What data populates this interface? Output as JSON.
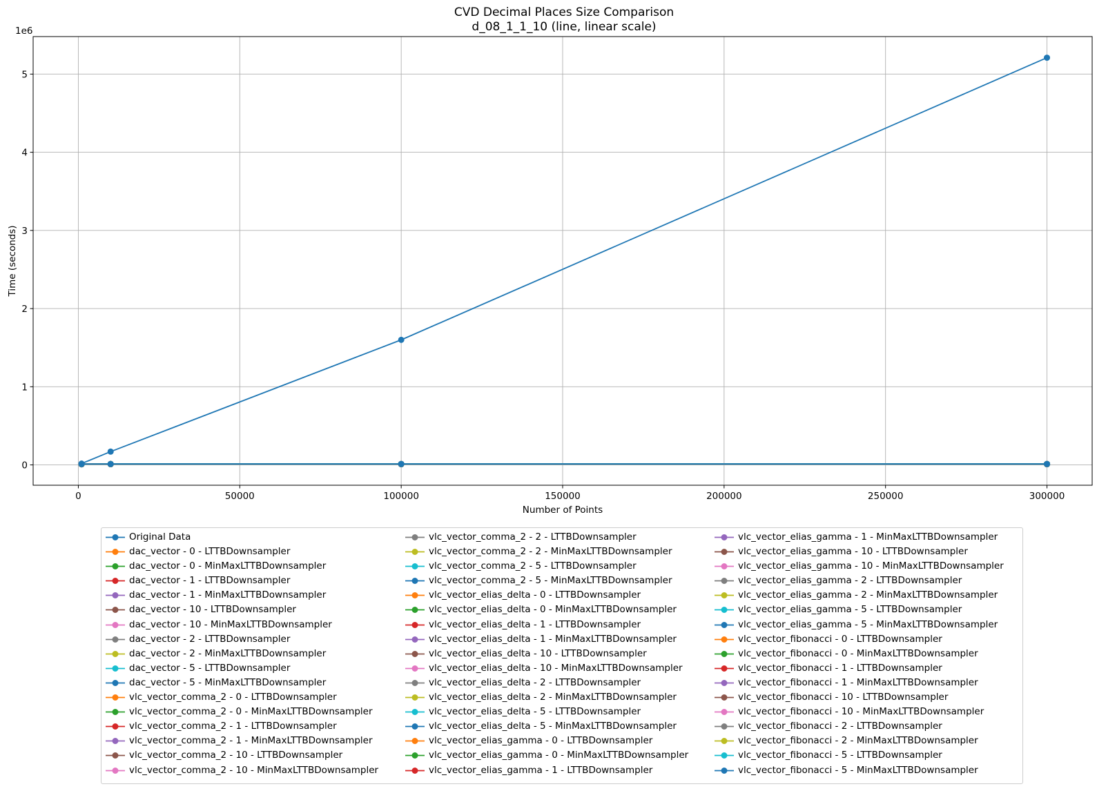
{
  "chart_data": {
    "type": "line",
    "title": "CVD Decimal Places Size Comparison",
    "subtitle": "d_08_1_1_10 (line, linear scale)",
    "xlabel": "Number of Points",
    "ylabel": "Time (seconds)",
    "y_offset_label": "1e6",
    "y_scale_factor": 1000000,
    "xlim": [
      -14000,
      314000
    ],
    "ylim": [
      -260000,
      5480000
    ],
    "x_ticks": [
      0,
      50000,
      100000,
      150000,
      200000,
      250000,
      300000
    ],
    "y_ticks": [
      0,
      1,
      2,
      3,
      4,
      5
    ],
    "grid": true,
    "legend_position": "below",
    "x": [
      1000,
      10000,
      100000,
      300000
    ],
    "palette": [
      "#1f77b4",
      "#ff7f0e",
      "#2ca02c",
      "#d62728",
      "#9467bd",
      "#8c564b",
      "#e377c2",
      "#7f7f7f",
      "#bcbd22",
      "#17becf"
    ],
    "series": [
      {
        "name": "Original Data",
        "values": [
          17000,
          170000,
          1600000,
          5210000
        ]
      },
      {
        "name": "dac_vector - 0 - LTTBDownsampler",
        "values": [
          8000,
          9000,
          9000,
          9000
        ]
      },
      {
        "name": "dac_vector - 0 - MinMaxLTTBDownsampler",
        "values": [
          8000,
          9000,
          9000,
          9000
        ]
      },
      {
        "name": "dac_vector - 1 - LTTBDownsampler",
        "values": [
          8000,
          9000,
          9000,
          9000
        ]
      },
      {
        "name": "dac_vector - 1 - MinMaxLTTBDownsampler",
        "values": [
          8000,
          9000,
          9000,
          9000
        ]
      },
      {
        "name": "dac_vector - 10 - LTTBDownsampler",
        "values": [
          8000,
          9000,
          9000,
          9000
        ]
      },
      {
        "name": "dac_vector - 10 - MinMaxLTTBDownsampler",
        "values": [
          8000,
          9000,
          9000,
          9000
        ]
      },
      {
        "name": "dac_vector - 2 - LTTBDownsampler",
        "values": [
          8000,
          9000,
          9000,
          9000
        ]
      },
      {
        "name": "dac_vector - 2 - MinMaxLTTBDownsampler",
        "values": [
          8000,
          9000,
          9000,
          9000
        ]
      },
      {
        "name": "dac_vector - 5 - LTTBDownsampler",
        "values": [
          8000,
          9000,
          9000,
          9000
        ]
      },
      {
        "name": "dac_vector - 5 - MinMaxLTTBDownsampler",
        "values": [
          8000,
          9000,
          9000,
          9000
        ]
      },
      {
        "name": "vlc_vector_comma_2 - 0 - LTTBDownsampler",
        "values": [
          9000,
          10000,
          10000,
          10000
        ]
      },
      {
        "name": "vlc_vector_comma_2 - 0 - MinMaxLTTBDownsampler",
        "values": [
          9000,
          10000,
          10000,
          10000
        ]
      },
      {
        "name": "vlc_vector_comma_2 - 1 - LTTBDownsampler",
        "values": [
          9000,
          10000,
          10000,
          10000
        ]
      },
      {
        "name": "vlc_vector_comma_2 - 1 - MinMaxLTTBDownsampler",
        "values": [
          9000,
          10000,
          10000,
          10000
        ]
      },
      {
        "name": "vlc_vector_comma_2 - 10 - LTTBDownsampler",
        "values": [
          9000,
          10000,
          10000,
          10000
        ]
      },
      {
        "name": "vlc_vector_comma_2 - 10 - MinMaxLTTBDownsampler",
        "values": [
          9000,
          10000,
          10000,
          10000
        ]
      },
      {
        "name": "vlc_vector_comma_2 - 2 - LTTBDownsampler",
        "values": [
          9000,
          10000,
          10000,
          10000
        ]
      },
      {
        "name": "vlc_vector_comma_2 - 2 - MinMaxLTTBDownsampler",
        "values": [
          9000,
          10000,
          10000,
          10000
        ]
      },
      {
        "name": "vlc_vector_comma_2 - 5 - LTTBDownsampler",
        "values": [
          9000,
          10000,
          10000,
          10000
        ]
      },
      {
        "name": "vlc_vector_comma_2 - 5 - MinMaxLTTBDownsampler",
        "values": [
          9000,
          10000,
          10000,
          10000
        ]
      },
      {
        "name": "vlc_vector_elias_delta - 0 - LTTBDownsampler",
        "values": [
          10000,
          11000,
          11000,
          11000
        ]
      },
      {
        "name": "vlc_vector_elias_delta - 0 - MinMaxLTTBDownsampler",
        "values": [
          10000,
          11000,
          11000,
          11000
        ]
      },
      {
        "name": "vlc_vector_elias_delta - 1 - LTTBDownsampler",
        "values": [
          10000,
          11000,
          11000,
          11000
        ]
      },
      {
        "name": "vlc_vector_elias_delta - 1 - MinMaxLTTBDownsampler",
        "values": [
          10000,
          11000,
          11000,
          11000
        ]
      },
      {
        "name": "vlc_vector_elias_delta - 10 - LTTBDownsampler",
        "values": [
          10000,
          11000,
          11000,
          11000
        ]
      },
      {
        "name": "vlc_vector_elias_delta - 10 - MinMaxLTTBDownsampler",
        "values": [
          10000,
          11000,
          11000,
          11000
        ]
      },
      {
        "name": "vlc_vector_elias_delta - 2 - LTTBDownsampler",
        "values": [
          10000,
          11000,
          11000,
          11000
        ]
      },
      {
        "name": "vlc_vector_elias_delta - 2 - MinMaxLTTBDownsampler",
        "values": [
          10000,
          11000,
          11000,
          11000
        ]
      },
      {
        "name": "vlc_vector_elias_delta - 5 - LTTBDownsampler",
        "values": [
          10000,
          11000,
          11000,
          11000
        ]
      },
      {
        "name": "vlc_vector_elias_delta - 5 - MinMaxLTTBDownsampler",
        "values": [
          10000,
          11000,
          11000,
          11000
        ]
      },
      {
        "name": "vlc_vector_elias_gamma - 0 - LTTBDownsampler",
        "values": [
          10000,
          11000,
          11000,
          11000
        ]
      },
      {
        "name": "vlc_vector_elias_gamma - 0 - MinMaxLTTBDownsampler",
        "values": [
          10000,
          11000,
          11000,
          11000
        ]
      },
      {
        "name": "vlc_vector_elias_gamma - 1 - LTTBDownsampler",
        "values": [
          10000,
          11000,
          11000,
          11000
        ]
      },
      {
        "name": "vlc_vector_elias_gamma - 1 - MinMaxLTTBDownsampler",
        "values": [
          10000,
          11000,
          11000,
          11000
        ]
      },
      {
        "name": "vlc_vector_elias_gamma - 10 - LTTBDownsampler",
        "values": [
          10000,
          11000,
          11000,
          11000
        ]
      },
      {
        "name": "vlc_vector_elias_gamma - 10 - MinMaxLTTBDownsampler",
        "values": [
          10000,
          11000,
          11000,
          11000
        ]
      },
      {
        "name": "vlc_vector_elias_gamma - 2 - LTTBDownsampler",
        "values": [
          10000,
          11000,
          11000,
          11000
        ]
      },
      {
        "name": "vlc_vector_elias_gamma - 2 - MinMaxLTTBDownsampler",
        "values": [
          10000,
          11000,
          11000,
          11000
        ]
      },
      {
        "name": "vlc_vector_elias_gamma - 5 - LTTBDownsampler",
        "values": [
          10000,
          11000,
          11000,
          11000
        ]
      },
      {
        "name": "vlc_vector_elias_gamma - 5 - MinMaxLTTBDownsampler",
        "values": [
          10000,
          11000,
          11000,
          11000
        ]
      },
      {
        "name": "vlc_vector_fibonacci - 0 - LTTBDownsampler",
        "values": [
          11000,
          12000,
          12000,
          12000
        ]
      },
      {
        "name": "vlc_vector_fibonacci - 0 - MinMaxLTTBDownsampler",
        "values": [
          11000,
          12000,
          12000,
          12000
        ]
      },
      {
        "name": "vlc_vector_fibonacci - 1 - LTTBDownsampler",
        "values": [
          11000,
          12000,
          12000,
          12000
        ]
      },
      {
        "name": "vlc_vector_fibonacci - 1 - MinMaxLTTBDownsampler",
        "values": [
          11000,
          12000,
          12000,
          12000
        ]
      },
      {
        "name": "vlc_vector_fibonacci - 10 - LTTBDownsampler",
        "values": [
          11000,
          12000,
          12000,
          12000
        ]
      },
      {
        "name": "vlc_vector_fibonacci - 10 - MinMaxLTTBDownsampler",
        "values": [
          11000,
          12000,
          12000,
          12000
        ]
      },
      {
        "name": "vlc_vector_fibonacci - 2 - LTTBDownsampler",
        "values": [
          11000,
          12000,
          12000,
          12000
        ]
      },
      {
        "name": "vlc_vector_fibonacci - 2 - MinMaxLTTBDownsampler",
        "values": [
          11000,
          12000,
          12000,
          12000
        ]
      },
      {
        "name": "vlc_vector_fibonacci - 5 - LTTBDownsampler",
        "values": [
          11000,
          12000,
          12000,
          12000
        ]
      },
      {
        "name": "vlc_vector_fibonacci - 5 - MinMaxLTTBDownsampler",
        "values": [
          11000,
          12000,
          12000,
          12000
        ]
      }
    ]
  }
}
